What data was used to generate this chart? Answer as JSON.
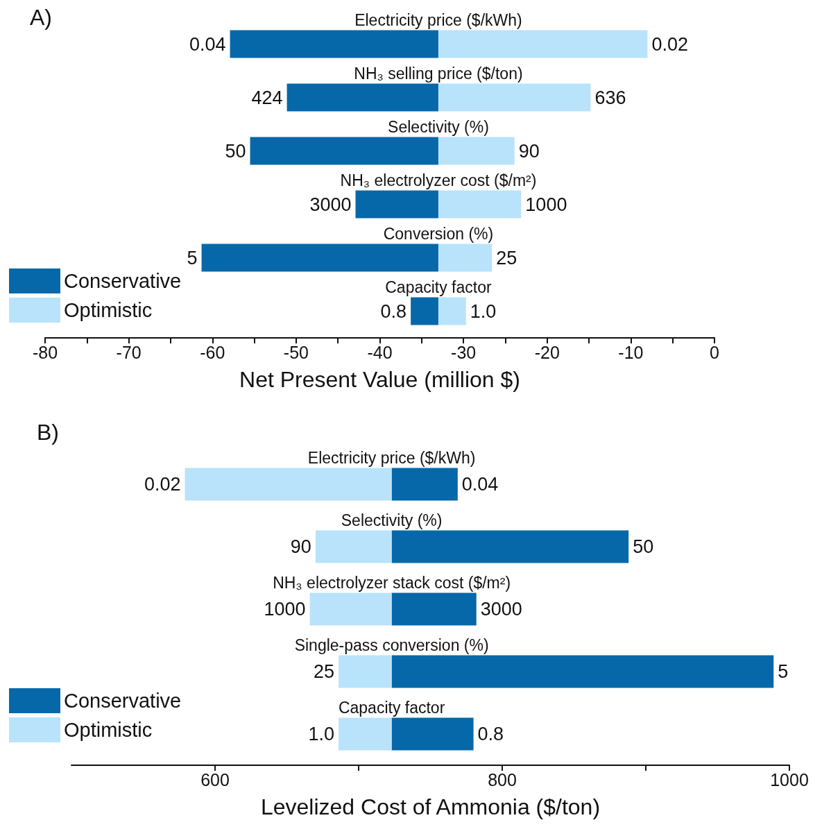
{
  "chart_data": [
    {
      "type": "bar",
      "title": "A)",
      "orientation": "horizontal",
      "xlabel": "Net Present Value (million $)",
      "categories": [
        "Electricity price ($/kWh)",
        "NH₃ selling price ($/ton)",
        "Selectivity (%)",
        "NH₃ electrolyzer cost ($/m²)",
        "Conversion (%)",
        "Capacity factor"
      ],
      "series": [
        {
          "name": "Conservative",
          "color": "#0668a8",
          "base": [
            -33,
            -33,
            -33,
            -33,
            -33,
            -33
          ],
          "values": [
            -24.9,
            -18.1,
            -22.5,
            -9.9,
            -28.3,
            -3.3
          ]
        },
        {
          "name": "Optimistic",
          "color": "#b9e3fb",
          "base": [
            -33,
            -33,
            -33,
            -33,
            -33,
            -33
          ],
          "values": [
            25.0,
            18.2,
            9.1,
            9.9,
            6.4,
            3.3
          ]
        }
      ],
      "annotations": [
        {
          "text": "0.04",
          "x": -57.9,
          "y": "Electricity price ($/kWh)"
        },
        {
          "text": "0.02",
          "x": -8.0,
          "y": "Electricity price ($/kWh)"
        },
        {
          "text": "424",
          "x": -51.1,
          "y": "NH₃ selling price ($/ton)"
        },
        {
          "text": "636",
          "x": -14.8,
          "y": "NH₃ selling price ($/ton)"
        },
        {
          "text": "50",
          "x": -55.5,
          "y": "Selectivity (%)"
        },
        {
          "text": "90",
          "x": -23.9,
          "y": "Selectivity (%)"
        },
        {
          "text": "3000",
          "x": -42.9,
          "y": "NH₃ electrolyzer cost ($/m²)"
        },
        {
          "text": "1000",
          "x": -23.1,
          "y": "NH₃ electrolyzer cost ($/m²)"
        },
        {
          "text": "5",
          "x": -61.3,
          "y": "Conversion (%)"
        },
        {
          "text": "25",
          "x": -26.6,
          "y": "Conversion (%)"
        },
        {
          "text": "0.8",
          "x": -36.3,
          "y": "Capacity factor"
        },
        {
          "text": "1.0",
          "x": -29.7,
          "y": "Capacity factor"
        }
      ],
      "xlim": [
        -80,
        0
      ],
      "xticks": [
        -80,
        {
          "value": -75,
          "label": null
        },
        -70,
        {
          "value": -65,
          "label": null
        },
        -60,
        {
          "value": -55,
          "label": null
        },
        -50,
        {
          "value": -45,
          "label": null
        },
        -40,
        {
          "value": -35,
          "label": null
        },
        -30,
        {
          "value": -25,
          "label": null
        },
        -20,
        {
          "value": -15,
          "label": null
        },
        -10,
        {
          "value": -5,
          "label": null
        },
        0
      ],
      "legend": "bottom left",
      "grid": false
    },
    {
      "type": "bar",
      "title": "B)",
      "orientation": "horizontal",
      "xlabel": "Levelized Cost of Ammonia ($/ton)",
      "categories": [
        "Electricity price ($/kWh)",
        "Selectivity (%)",
        "NH₃ electrolyzer stack cost ($/m²)",
        "Single-pass conversion (%)",
        "Capacity factor"
      ],
      "series": [
        {
          "name": "Conservative",
          "color": "#0668a8",
          "base": [
            723,
            723,
            723,
            723,
            723
          ],
          "values": [
            46,
            165,
            59,
            266,
            57
          ]
        },
        {
          "name": "Optimistic",
          "color": "#b9e3fb",
          "base": [
            723,
            723,
            723,
            723,
            723
          ],
          "values": [
            -144,
            -53,
            -57,
            -37,
            -37
          ]
        }
      ],
      "annotations": [
        {
          "text": "0.02",
          "x": 579,
          "y": "Electricity price ($/kWh)"
        },
        {
          "text": "0.04",
          "x": 769,
          "y": "Electricity price ($/kWh)"
        },
        {
          "text": "90",
          "x": 670,
          "y": "Selectivity (%)"
        },
        {
          "text": "50",
          "x": 888,
          "y": "Selectivity (%)"
        },
        {
          "text": "1000",
          "x": 666,
          "y": "NH₃ electrolyzer stack cost ($/m²)"
        },
        {
          "text": "3000",
          "x": 782,
          "y": "NH₃ electrolyzer stack cost ($/m²)"
        },
        {
          "text": "25",
          "x": 686,
          "y": "Single-pass conversion (%)"
        },
        {
          "text": "5",
          "x": 989,
          "y": "Single-pass conversion (%)"
        },
        {
          "text": "1.0",
          "x": 686,
          "y": "Capacity factor"
        },
        {
          "text": "0.8",
          "x": 780,
          "y": "Capacity factor"
        }
      ],
      "xlim": [
        500,
        1000
      ],
      "xticks": [
        600,
        {
          "value": 700,
          "label": null
        },
        800,
        {
          "value": 900,
          "label": null
        },
        1000
      ],
      "legend": "bottom left",
      "grid": false
    }
  ]
}
